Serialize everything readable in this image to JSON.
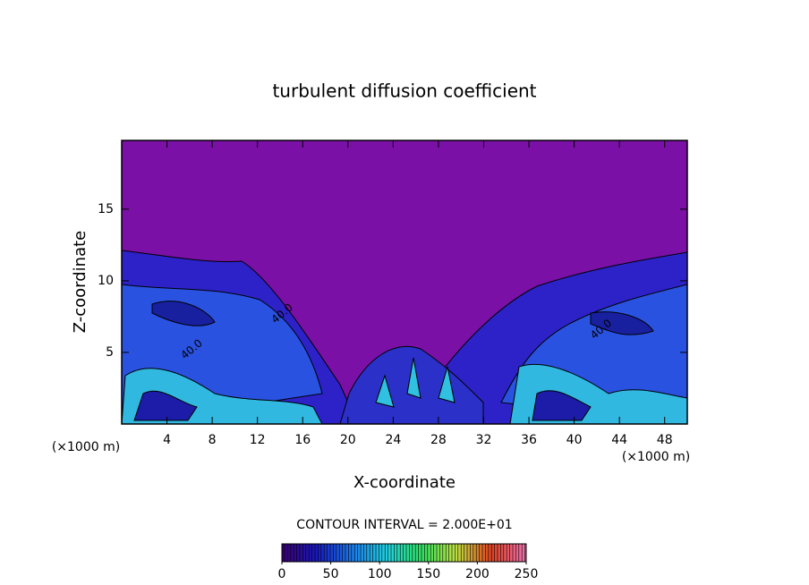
{
  "chart_data": {
    "type": "contour",
    "title": "turbulent diffusion coefficient",
    "xlabel": "X-coordinate",
    "ylabel": "Z-coordinate",
    "x_unit": "(×1000 m)",
    "x_unit_right": "(×1000 m)",
    "xlim": [
      0,
      50
    ],
    "ylim": [
      0,
      19.8
    ],
    "xticks": [
      4,
      8,
      12,
      16,
      20,
      24,
      28,
      32,
      36,
      40,
      44,
      48
    ],
    "yticks": [
      5,
      10,
      15
    ],
    "annotations": [
      {
        "text": "40.0",
        "x": 6.2,
        "y": 5.2
      },
      {
        "text": "40.0",
        "x": 14.2,
        "y": 7.7
      },
      {
        "text": "40.0",
        "x": 42.4,
        "y": 6.6
      }
    ],
    "contour_interval_label": "CONTOUR INTERVAL = 2.000E+01",
    "colorbar": {
      "lim": [
        0,
        250
      ],
      "ticks": [
        0,
        50,
        100,
        150,
        200,
        250
      ],
      "colors": [
        "#3a0070",
        "#1818c0",
        "#1a78e8",
        "#20d0e0",
        "#30e060",
        "#c0e040",
        "#e04020",
        "#f070b0"
      ]
    }
  }
}
